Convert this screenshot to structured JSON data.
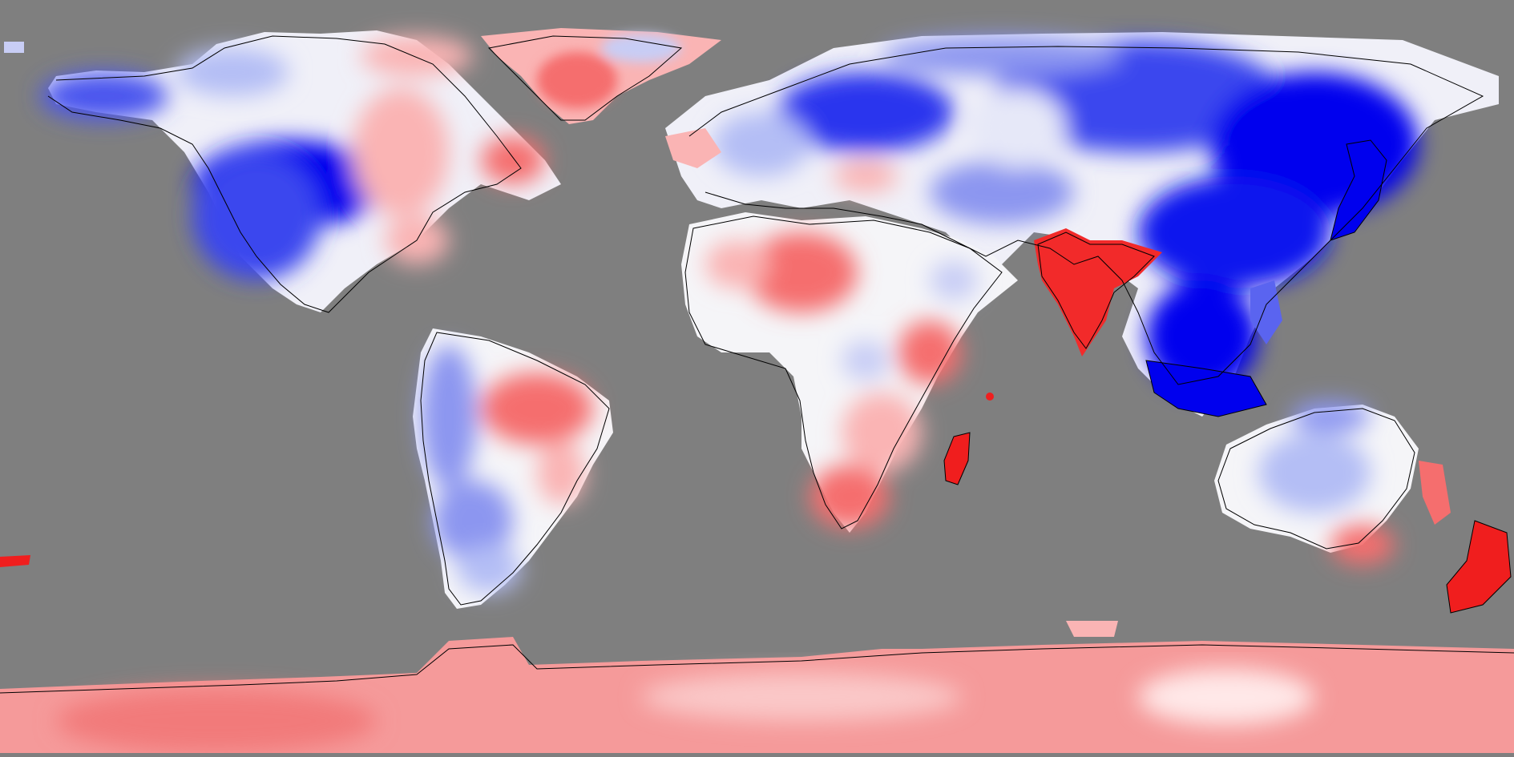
{
  "map": {
    "projection": "equirectangular",
    "background_color": "#7f7f7f",
    "palette": {
      "strong_negative": "#0000ee",
      "negative": "#5a64f0",
      "weak_negative": "#b4bef5",
      "neutral": "#f5f5f8",
      "weak_positive": "#fab4b4",
      "positive": "#f56e6e",
      "strong_positive": "#f01e1e"
    },
    "coastline_color": "#000000",
    "legend": null
  }
}
